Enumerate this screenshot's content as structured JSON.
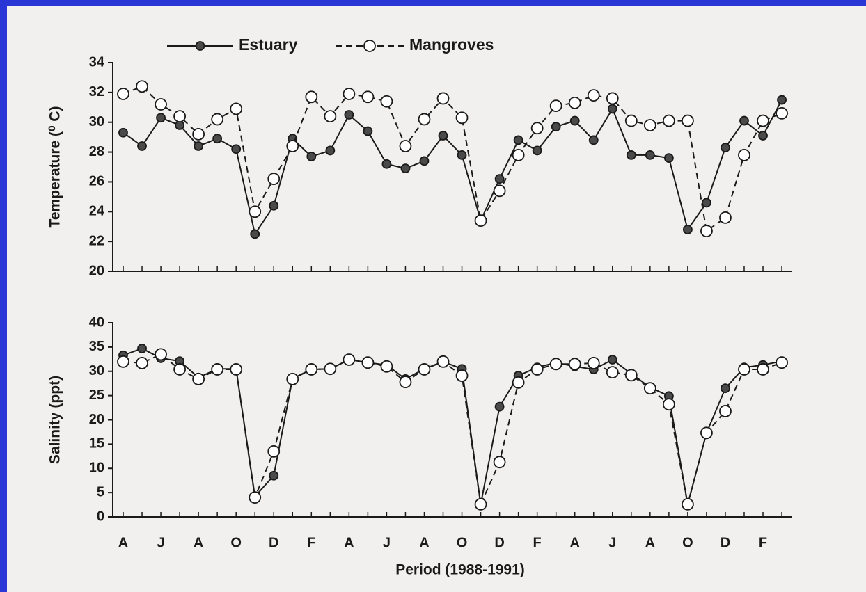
{
  "chart_data": [
    {
      "type": "line",
      "ylabel": "Temperature (⁰ C)",
      "ylim": [
        20,
        34
      ],
      "yticks": [
        20,
        22,
        24,
        26,
        28,
        30,
        32,
        34
      ],
      "series": [
        {
          "name": "Estuary",
          "color": "#1a1a1a",
          "marker_fill": "#4a4a4a",
          "dashed": false,
          "values": [
            29.3,
            28.4,
            30.3,
            29.8,
            28.4,
            28.9,
            28.2,
            22.5,
            24.4,
            28.9,
            27.7,
            28.1,
            30.5,
            29.4,
            27.2,
            26.9,
            27.4,
            29.1,
            27.8,
            23.4,
            26.2,
            28.8,
            28.1,
            29.7,
            30.1,
            28.8,
            30.9,
            27.8,
            27.8,
            27.6,
            22.8,
            24.6,
            28.3,
            30.1,
            29.1,
            31.5
          ]
        },
        {
          "name": "Mangroves",
          "color": "#1a1a1a",
          "marker_fill": "#ffffff",
          "dashed": true,
          "values": [
            31.9,
            32.4,
            31.2,
            30.4,
            29.2,
            30.2,
            30.9,
            24.0,
            26.2,
            28.4,
            31.7,
            30.4,
            31.9,
            31.7,
            31.4,
            28.4,
            30.2,
            31.6,
            30.3,
            23.4,
            25.4,
            27.8,
            29.6,
            31.1,
            31.3,
            31.8,
            31.6,
            30.1,
            29.8,
            30.1,
            30.1,
            22.7,
            23.6,
            27.8,
            30.1,
            30.6
          ]
        }
      ]
    },
    {
      "type": "line",
      "xlabel": "Period (1988-1991)",
      "ylabel": "Salinity (ppt)",
      "categories": [
        "A",
        null,
        "J",
        null,
        "A",
        null,
        "O",
        null,
        "D",
        null,
        "F",
        null,
        "A",
        null,
        "J",
        null,
        "A",
        null,
        "O",
        null,
        "D",
        null,
        "F",
        null,
        "A",
        null,
        "J",
        null,
        "A",
        null,
        "O",
        null,
        "D",
        null,
        "F",
        null
      ],
      "ylim": [
        0,
        40
      ],
      "yticks": [
        0,
        5,
        10,
        15,
        20,
        25,
        30,
        35,
        40
      ],
      "series": [
        {
          "color": "#1a1a1a",
          "marker_fill": "#4a4a4a",
          "dashed": false,
          "values": [
            33.3,
            34.7,
            32.7,
            32.1,
            28.7,
            30.5,
            30.5,
            4.2,
            8.5,
            28.5,
            30.4,
            30.5,
            32.4,
            31.8,
            31.3,
            28.4,
            30.5,
            32.0,
            30.5,
            2.6,
            22.7,
            29.1,
            30.8,
            31.8,
            31.0,
            30.4,
            32.4,
            29.5,
            26.7,
            24.9,
            2.6,
            17.3,
            26.5,
            30.8,
            31.3,
            32.1
          ]
        },
        {
          "color": "#1a1a1a",
          "marker_fill": "#ffffff",
          "dashed": true,
          "values": [
            32.0,
            31.7,
            33.5,
            30.4,
            28.4,
            30.4,
            30.4,
            4.0,
            13.5,
            28.4,
            30.4,
            30.5,
            32.4,
            31.8,
            31.0,
            27.8,
            30.4,
            32.0,
            29.1,
            2.6,
            11.3,
            27.7,
            30.4,
            31.5,
            31.5,
            31.7,
            29.8,
            29.2,
            26.5,
            23.2,
            2.6,
            17.3,
            21.8,
            30.4,
            30.4,
            31.8
          ]
        }
      ]
    }
  ]
}
